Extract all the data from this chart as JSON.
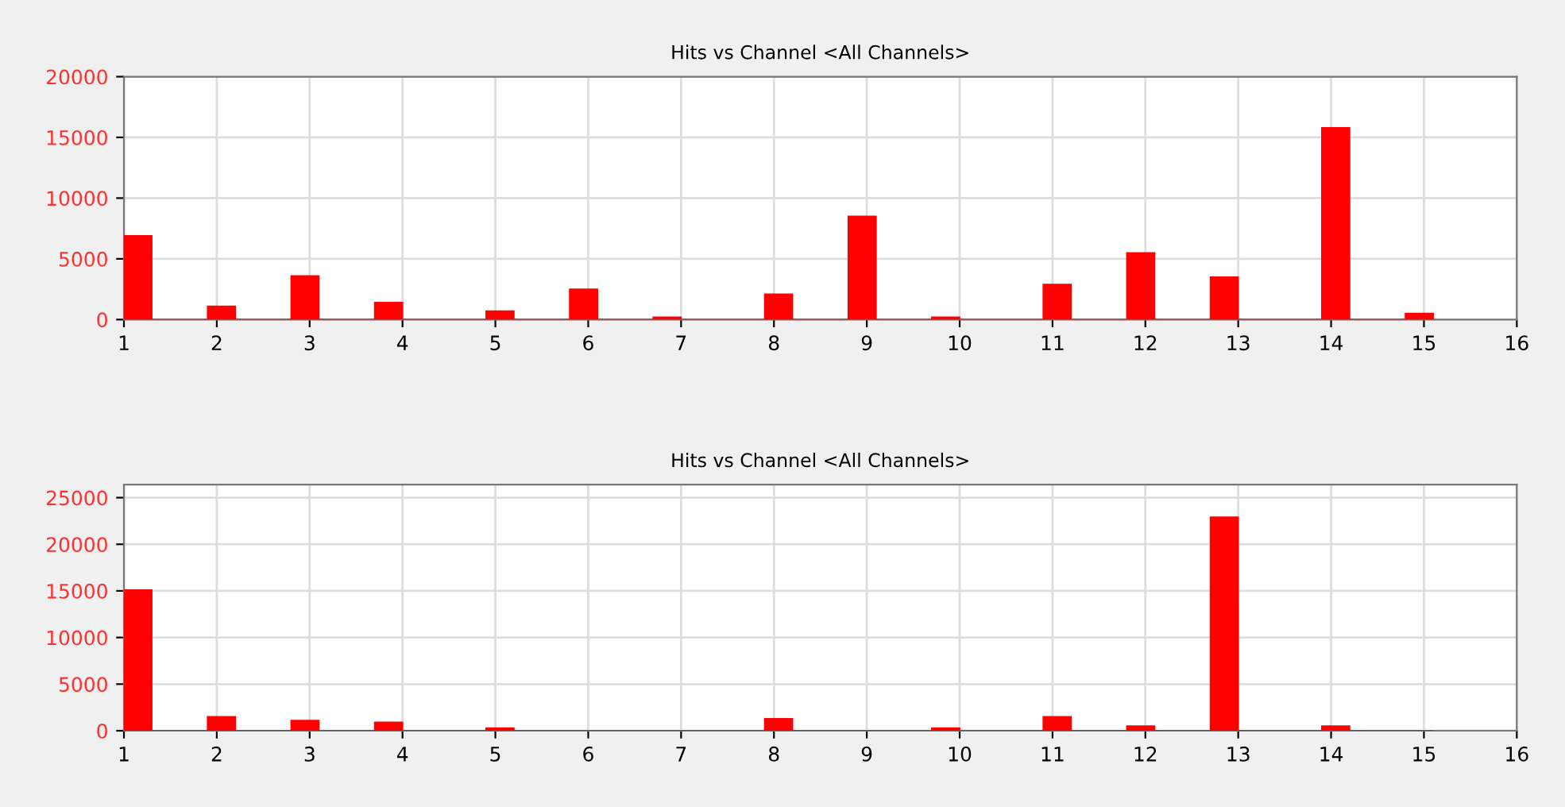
{
  "chart_data": [
    {
      "type": "histogram",
      "title": "Hits vs Channel <All Channels>",
      "color": "#ff0000",
      "bins": [
        1.0,
        1.3,
        1.6,
        1.9,
        2.2,
        2.5,
        2.8,
        3.1,
        3.4,
        3.7,
        4.0,
        4.3,
        4.6,
        4.9,
        5.2,
        5.5,
        5.8,
        6.1,
        6.4,
        6.7,
        7.0,
        7.3,
        7.6,
        7.9,
        8.2,
        8.5,
        8.8,
        9.1,
        9.4,
        9.7,
        10.0,
        10.3,
        10.6,
        10.9,
        11.2,
        11.5,
        11.8,
        12.1,
        12.4,
        12.7,
        13.0,
        13.3,
        13.6,
        13.9,
        14.2,
        14.5,
        14.8,
        15.1
      ],
      "values": [
        6900,
        0,
        0,
        1100,
        0,
        0,
        3600,
        0,
        0,
        1400,
        0,
        0,
        0,
        700,
        0,
        0,
        2500,
        0,
        0,
        200,
        0,
        0,
        0,
        2100,
        0,
        0,
        8500,
        0,
        0,
        200,
        0,
        0,
        0,
        2900,
        0,
        0,
        5500,
        0,
        0,
        3500,
        0,
        0,
        0,
        15800,
        0,
        0,
        500
      ],
      "xlim": [
        1,
        16
      ],
      "xticks": [
        1,
        2,
        3,
        4,
        5,
        6,
        7,
        8,
        9,
        10,
        11,
        12,
        13,
        14,
        15,
        16
      ],
      "ylim": [
        0,
        20000
      ],
      "yticks": [
        0,
        5000,
        10000,
        15000,
        20000
      ],
      "grid": true
    },
    {
      "type": "histogram",
      "title": "Hits vs Channel <All Channels>",
      "color": "#ff0000",
      "bins": [
        1.0,
        1.3,
        1.6,
        1.9,
        2.2,
        2.5,
        2.8,
        3.1,
        3.4,
        3.7,
        4.0,
        4.3,
        4.6,
        4.9,
        5.2,
        5.5,
        5.8,
        6.1,
        6.4,
        6.7,
        7.0,
        7.3,
        7.6,
        7.9,
        8.2,
        8.5,
        8.8,
        9.1,
        9.4,
        9.7,
        10.0,
        10.3,
        10.6,
        10.9,
        11.2,
        11.5,
        11.8,
        12.1,
        12.4,
        12.7,
        13.0,
        13.3,
        13.6,
        13.9,
        14.2,
        14.5,
        14.8,
        15.1
      ],
      "values": [
        15100,
        0,
        0,
        1500,
        0,
        0,
        1100,
        0,
        0,
        900,
        0,
        0,
        0,
        300,
        0,
        0,
        0,
        0,
        0,
        0,
        0,
        0,
        0,
        1300,
        0,
        0,
        0,
        0,
        0,
        300,
        0,
        0,
        0,
        1500,
        0,
        0,
        500,
        0,
        0,
        22900,
        0,
        0,
        0,
        500,
        0,
        0,
        0
      ],
      "xlim": [
        1,
        16
      ],
      "xticks": [
        1,
        2,
        3,
        4,
        5,
        6,
        7,
        8,
        9,
        10,
        11,
        12,
        13,
        14,
        15,
        16
      ],
      "ylim": [
        0,
        26400
      ],
      "yticks": [
        0,
        5000,
        10000,
        15000,
        20000,
        25000
      ],
      "grid": true
    }
  ]
}
